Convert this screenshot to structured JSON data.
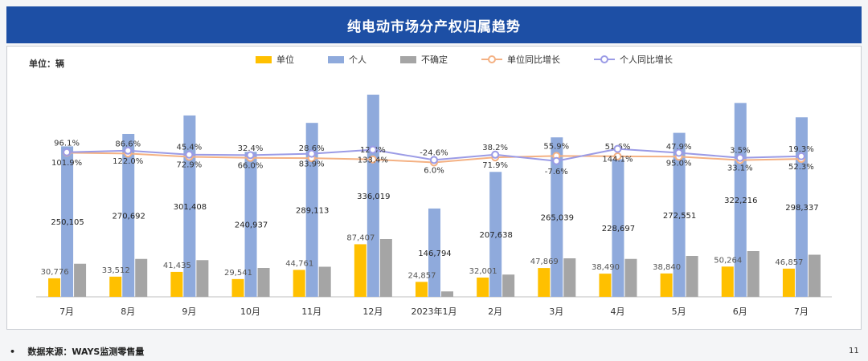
{
  "header": {
    "title": "纯电动市场分产权归属趋势"
  },
  "unit_label": "单位：辆",
  "legend": [
    {
      "label": "单位",
      "color": "#ffc000",
      "kind": "bar"
    },
    {
      "label": "个人",
      "color": "#8faadc",
      "kind": "bar"
    },
    {
      "label": "不确定",
      "color": "#a5a5a5",
      "kind": "bar"
    },
    {
      "label": "单位同比增长",
      "color": "#f4b183",
      "kind": "line"
    },
    {
      "label": "个人同比增长",
      "color": "#9b9be6",
      "kind": "line"
    }
  ],
  "chart_data": {
    "type": "bar",
    "categories": [
      "7月",
      "8月",
      "9月",
      "10月",
      "11月",
      "12月",
      "2023年1月",
      "2月",
      "3月",
      "4月",
      "5月",
      "6月",
      "7月"
    ],
    "series": [
      {
        "name": "单位",
        "color": "#ffc000",
        "values": [
          30776,
          33512,
          41435,
          29541,
          44761,
          87407,
          24857,
          32001,
          47869,
          38490,
          38840,
          50264,
          46857
        ],
        "labels": [
          "30,776",
          "33,512",
          "41,435",
          "29,541",
          "44,761",
          "87,407",
          "24,857",
          "32,001",
          "47,869",
          "38,490",
          "38,840",
          "50,264",
          "46,857"
        ]
      },
      {
        "name": "个人",
        "color": "#8faadc",
        "values": [
          250105,
          270692,
          301408,
          240937,
          289113,
          336019,
          146794,
          207638,
          265039,
          228697,
          272551,
          322216,
          298337
        ],
        "labels": [
          "250,105",
          "270,692",
          "301,408",
          "240,937",
          "289,113",
          "336,019",
          "146,794",
          "207,638",
          "265,039",
          "228,697",
          "272,551",
          "322,216",
          "298,337"
        ]
      },
      {
        "name": "不确定",
        "color": "#a5a5a5",
        "values": [
          55000,
          63000,
          61000,
          48000,
          50000,
          96000,
          9000,
          37000,
          64000,
          63000,
          68000,
          76000,
          70000
        ]
      }
    ],
    "lines": [
      {
        "name": "单位同比增长",
        "color": "#f4b183",
        "values": [
          96.1,
          86.6,
          45.4,
          32.4,
          28.6,
          12.3,
          -24.6,
          38.2,
          55.9,
          51.6,
          47.9,
          3.5,
          19.3
        ],
        "labels": [
          "96.1%",
          "86.6%",
          "45.4%",
          "32.4%",
          "28.6%",
          "12.3%",
          "-24.6%",
          "38.2%",
          "55.9%",
          "51.6%",
          "47.9%",
          "3.5%",
          "19.3%"
        ]
      },
      {
        "name": "个人同比增长",
        "color": "#9b9be6",
        "values": [
          101.9,
          122.0,
          72.9,
          66.0,
          83.9,
          133.4,
          6.0,
          71.9,
          -7.6,
          144.1,
          95.0,
          33.1,
          52.3
        ],
        "labels": [
          "101.9%",
          "122.0%",
          "72.9%",
          "66.0%",
          "83.9%",
          "133.4%",
          "6.0%",
          "71.9%",
          "-7.6%",
          "144.1%",
          "95.0%",
          "33.1%",
          "52.3%"
        ]
      }
    ],
    "ylim": [
      0,
      340000
    ]
  },
  "footer": {
    "source": "数据来源：WAYS监测零售量",
    "page_number": "11"
  }
}
